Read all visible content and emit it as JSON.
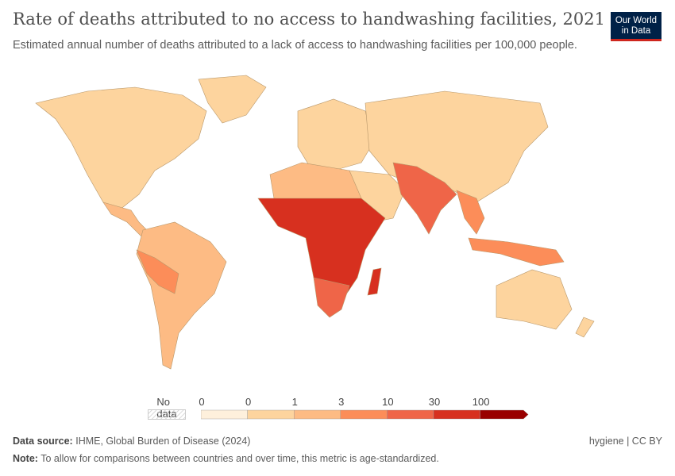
{
  "header": {
    "title": "Rate of deaths attributed to no access to handwashing facilities, 2021",
    "subtitle": "Estimated annual number of deaths attributed to a lack of access to handwashing facilities per 100,000 people.",
    "logo": "Our World in Data"
  },
  "legend": {
    "no_data": "No data",
    "ticks": [
      "0",
      "0",
      "1",
      "3",
      "10",
      "30",
      "100"
    ],
    "colors": [
      "#fef0dc",
      "#fdd49e",
      "#fdbb84",
      "#fc8d59",
      "#ef6548",
      "#d7301f",
      "#990000"
    ]
  },
  "map": {
    "colors": {
      "low": "#fdd49e",
      "mid": "#fdbb84",
      "orange": "#fc8d59",
      "red1": "#ef6548",
      "red2": "#d7301f",
      "border": "#c9a77c"
    }
  },
  "footer": {
    "source_label": "Data source:",
    "source": "IHME, Global Burden of Disease (2024)",
    "note_label": "Note:",
    "note": "To allow for comparisons between countries and over time, this metric is age-standardized.",
    "license": "hygiene | CC BY"
  }
}
